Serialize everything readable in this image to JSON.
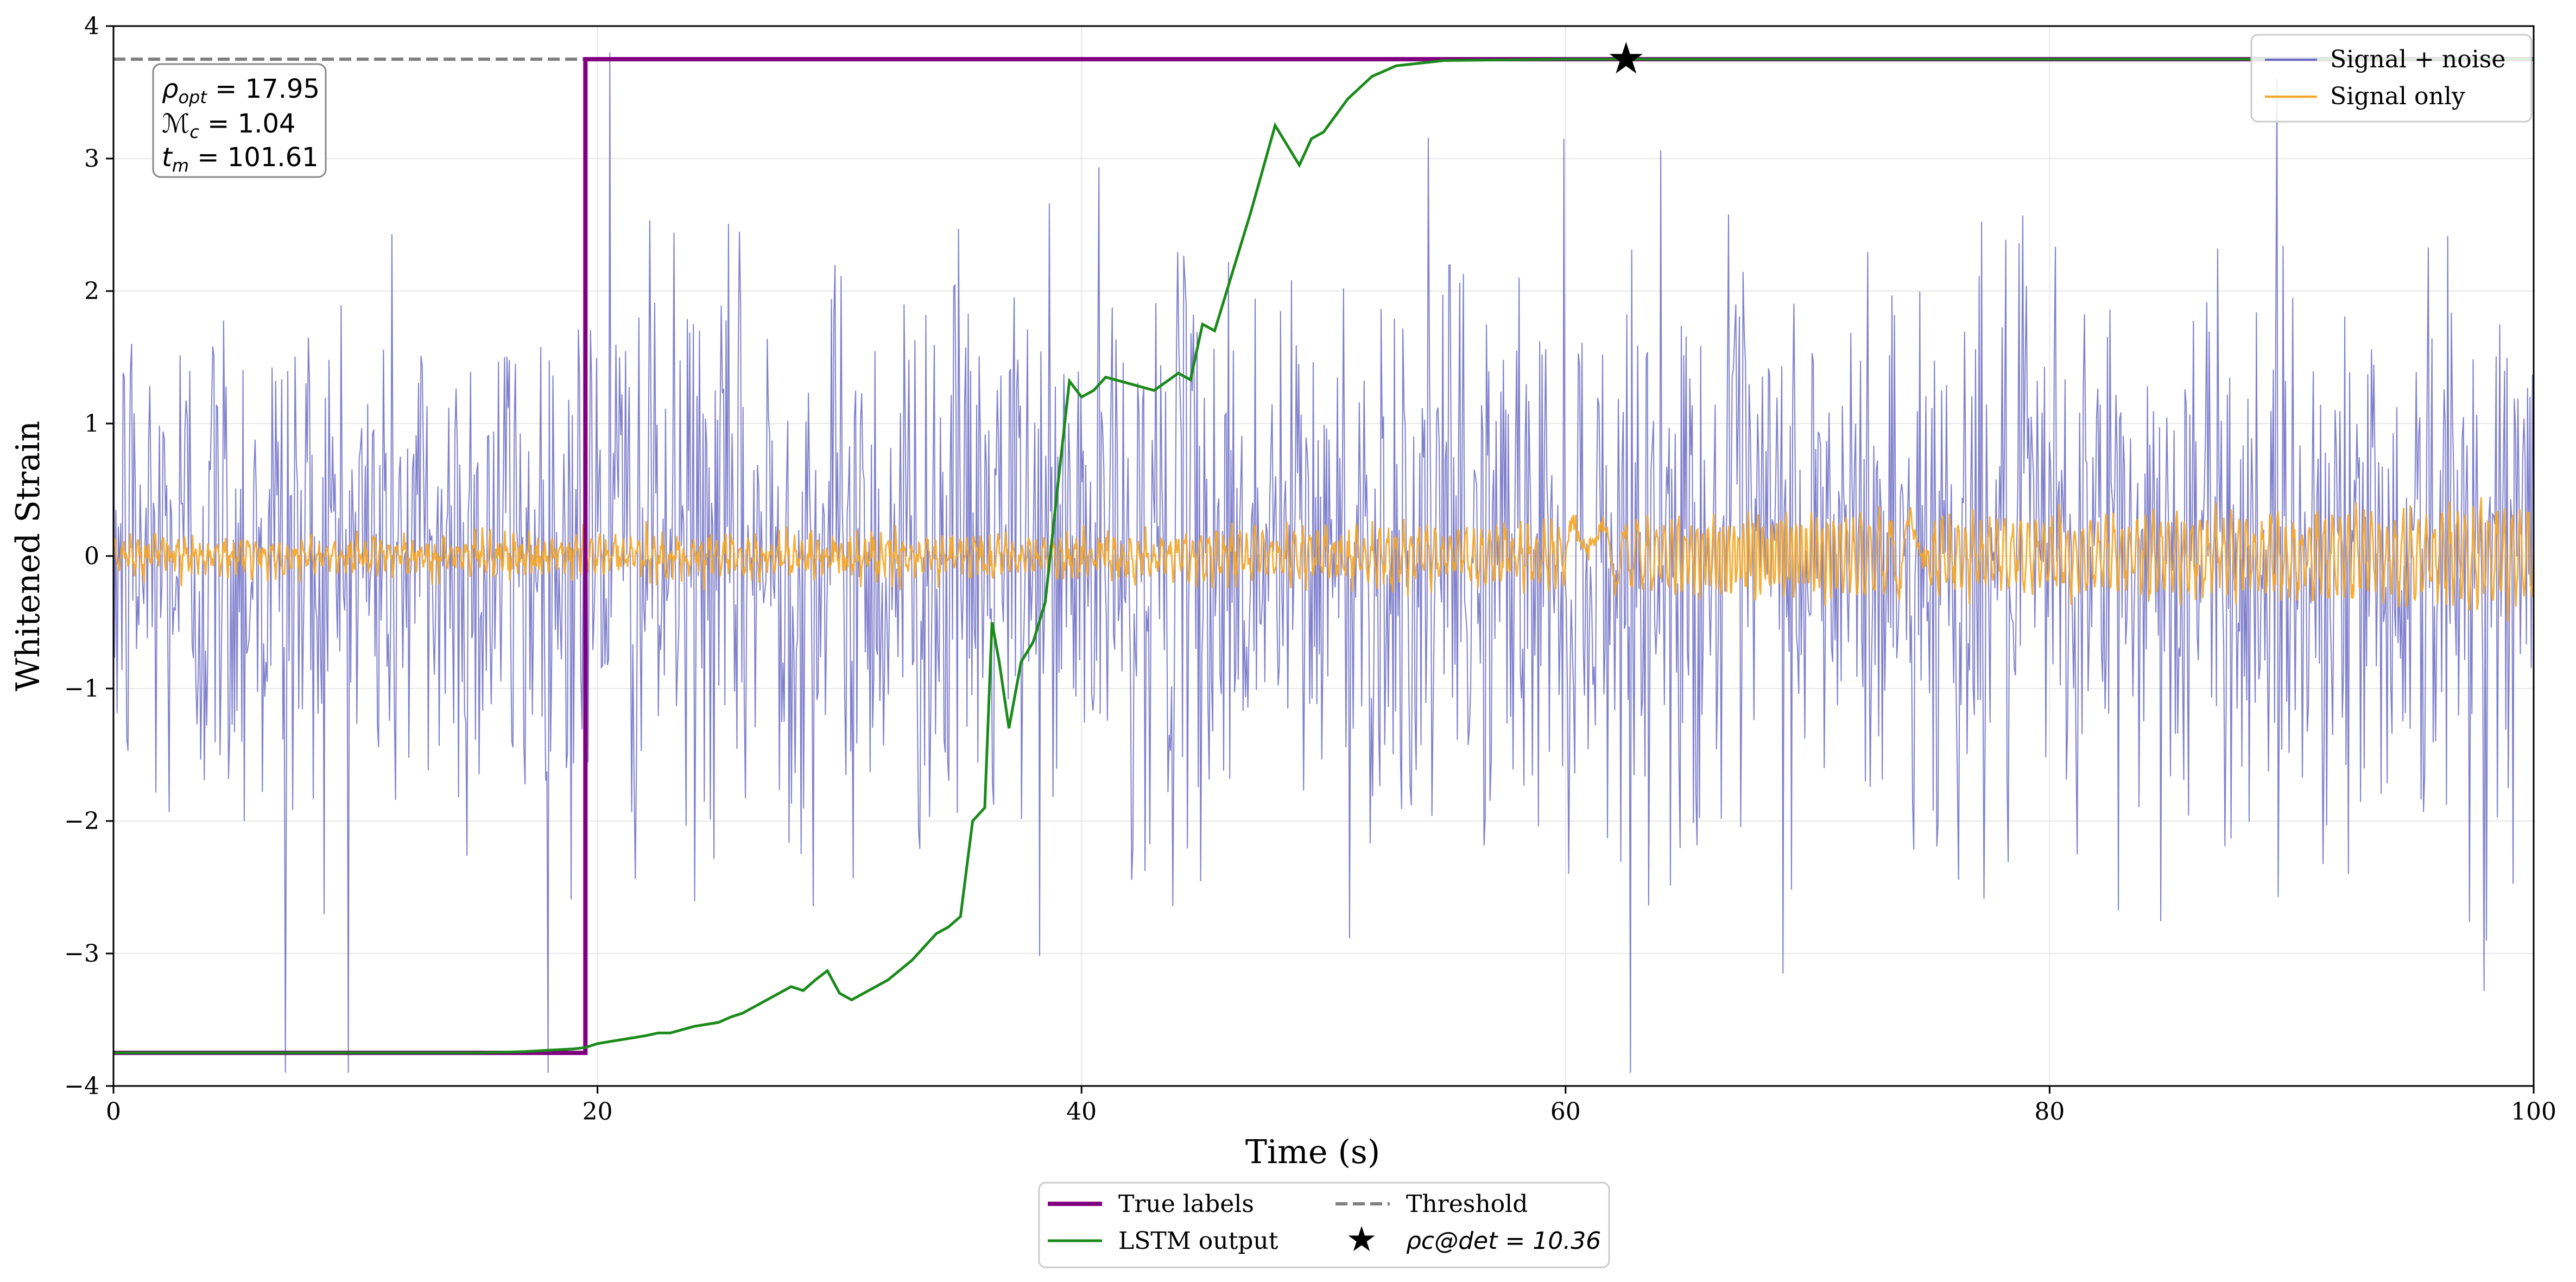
{
  "chart_data": {
    "type": "line",
    "title": "",
    "xlabel": "Time (s)",
    "ylabel": "Whitened Strain",
    "xlim": [
      0,
      100
    ],
    "ylim": [
      -4,
      4
    ],
    "x_ticks": [
      0,
      20,
      40,
      60,
      80,
      100
    ],
    "y_ticks": [
      -4,
      -3,
      -2,
      -1,
      0,
      1,
      2,
      3,
      4
    ],
    "x_tick_labels": [
      "0",
      "20",
      "40",
      "60",
      "80",
      "100"
    ],
    "y_tick_labels": [
      "−4",
      "−3",
      "−2",
      "−1",
      "0",
      "1",
      "2",
      "3",
      "4"
    ],
    "grid": true,
    "threshold": 3.75,
    "info_box": [
      {
        "base": "ρ",
        "sub": "opt",
        "value": " = 17.95"
      },
      {
        "base": "ℳ",
        "sub": "c",
        "value": " = 1.04"
      },
      {
        "base": "t",
        "sub": "m",
        "value": " = 101.61"
      }
    ],
    "upper_legend": {
      "placement": "top-right",
      "entries": [
        {
          "label": "Signal + noise",
          "color": "#6a6ac4"
        },
        {
          "label": "Signal only",
          "color": "#f5a623"
        }
      ]
    },
    "lower_legend": {
      "placement": "below-center",
      "entries": [
        {
          "label": "True labels",
          "color": "#800080",
          "style": "line"
        },
        {
          "label": "Threshold",
          "color": "#808080",
          "style": "dashed"
        },
        {
          "label": "LSTM output",
          "color": "#1a8a1a",
          "style": "line"
        },
        {
          "label": "ρc@det = 10.36",
          "color": "#000000",
          "style": "star"
        }
      ]
    },
    "series": [
      {
        "name": "Signal + noise",
        "color": "#6a6ac4",
        "description_points": "dense Gaussian noise, std about 1, min about -3.9 near t=7, max about 3.8 near t=20.5",
        "sample_count": 2000
      },
      {
        "name": "Signal only",
        "color": "#f5a623",
        "envelope": {
          "t": [
            0,
            40,
            45,
            60,
            70,
            75,
            90,
            100
          ],
          "amp": [
            0.1,
            0.12,
            0.18,
            0.22,
            0.25,
            0.28,
            0.32,
            0.4
          ]
        }
      },
      {
        "name": "True labels",
        "color": "#800080",
        "step_time": 19.5,
        "values": [
          -3.75,
          3.75
        ]
      },
      {
        "name": "LSTM output",
        "color": "#1a8a1a",
        "x": [
          0,
          5,
          10,
          15,
          17,
          18,
          19,
          19.5,
          20,
          21,
          22,
          22.5,
          23,
          24,
          25,
          25.5,
          26,
          27,
          28,
          28.5,
          29,
          29.5,
          30,
          30.5,
          31,
          32,
          33,
          34,
          34.5,
          35,
          35.5,
          36,
          36.3,
          36.6,
          37,
          37.5,
          38,
          38.5,
          39,
          39.5,
          40,
          40.5,
          41,
          42,
          43,
          44,
          44.5,
          45,
          45.5,
          46,
          47,
          48,
          48.5,
          49,
          49.5,
          50,
          51,
          52,
          53,
          55,
          60,
          70,
          80,
          90,
          100
        ],
        "values": [
          -3.75,
          -3.75,
          -3.75,
          -3.75,
          -3.74,
          -3.73,
          -3.72,
          -3.71,
          -3.68,
          -3.65,
          -3.62,
          -3.6,
          -3.6,
          -3.55,
          -3.52,
          -3.48,
          -3.45,
          -3.35,
          -3.25,
          -3.28,
          -3.2,
          -3.13,
          -3.3,
          -3.35,
          -3.3,
          -3.2,
          -3.05,
          -2.85,
          -2.8,
          -2.72,
          -2.0,
          -1.9,
          -0.5,
          -0.8,
          -1.3,
          -0.8,
          -0.65,
          -0.35,
          0.5,
          1.32,
          1.2,
          1.25,
          1.35,
          1.3,
          1.25,
          1.38,
          1.33,
          1.75,
          1.7,
          2.0,
          2.6,
          3.25,
          3.1,
          2.95,
          3.15,
          3.2,
          3.45,
          3.62,
          3.7,
          3.74,
          3.75,
          3.75,
          3.75,
          3.75,
          3.75
        ]
      }
    ],
    "detection_marker": {
      "x": 62.5,
      "y": 3.75,
      "label": "ρc@det = 10.36"
    }
  }
}
